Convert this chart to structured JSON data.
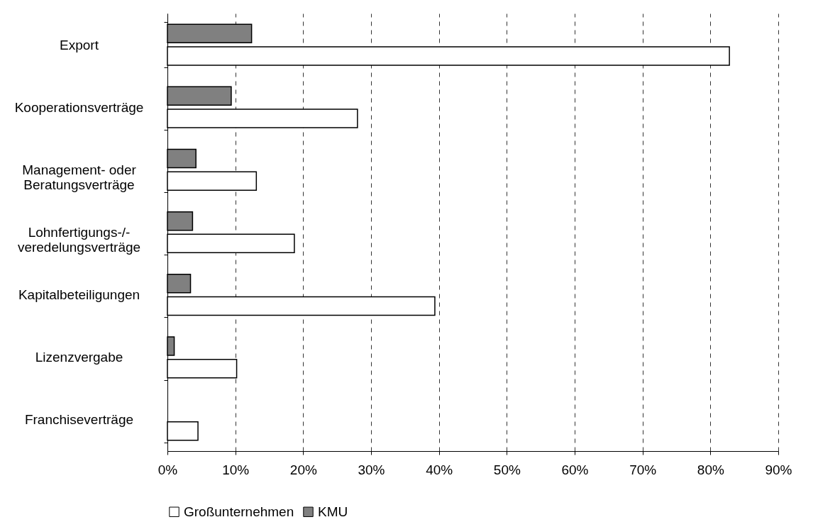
{
  "chart_data": {
    "type": "bar",
    "orientation": "horizontal",
    "categories": [
      "Export",
      "Kooperationsverträge",
      "Management- oder\nBeratungsverträge",
      "Lohnfertigungs-/-\nveredelungsverträge",
      "Kapitalbeteiligungen",
      "Lizenzvergabe",
      "Franchiseverträge"
    ],
    "series": [
      {
        "name": "Großunternehmen",
        "color": "#ffffff",
        "values": [
          82.8,
          28.0,
          13.1,
          18.7,
          39.4,
          10.2,
          4.5
        ]
      },
      {
        "name": "KMU",
        "color": "#808080",
        "values": [
          12.4,
          9.4,
          4.2,
          3.7,
          3.4,
          1.0,
          null
        ]
      }
    ],
    "xlim": [
      0,
      90
    ],
    "xticks": [
      {
        "value": 0,
        "label": "0%"
      },
      {
        "value": 10,
        "label": "10%"
      },
      {
        "value": 20,
        "label": "20%"
      },
      {
        "value": 30,
        "label": "30%"
      },
      {
        "value": 40,
        "label": "40%"
      },
      {
        "value": 50,
        "label": "50%"
      },
      {
        "value": 60,
        "label": "60%"
      },
      {
        "value": 70,
        "label": "70%"
      },
      {
        "value": 80,
        "label": "80%"
      },
      {
        "value": 90,
        "label": "90%"
      }
    ],
    "grid": "x",
    "legend": "bottom"
  }
}
